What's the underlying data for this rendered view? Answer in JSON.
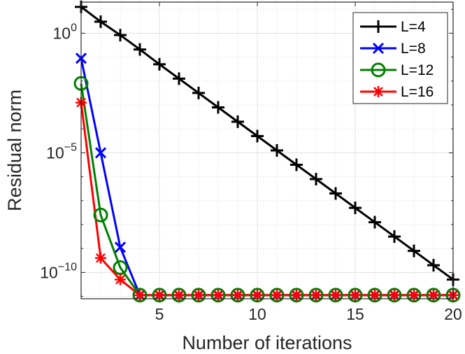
{
  "chart_data": {
    "type": "line",
    "title": "",
    "xlabel": "Number of iterations",
    "ylabel": "Residual norm",
    "xlim": [
      1,
      20
    ],
    "ylim_log10": [
      -11.1,
      1.3
    ],
    "yscale": "log",
    "grid": true,
    "legend_position": "top-right",
    "x_ticks": [
      {
        "value": 5,
        "label": "5"
      },
      {
        "value": 10,
        "label": "10"
      },
      {
        "value": 15,
        "label": "15"
      },
      {
        "value": 20,
        "label": "20"
      }
    ],
    "y_ticks": [
      {
        "exp": 0,
        "base": "10",
        "sup": "0"
      },
      {
        "exp": -5,
        "base": "10",
        "sup": "−5"
      },
      {
        "exp": -10,
        "base": "10",
        "sup": "−10"
      }
    ],
    "x": [
      1,
      2,
      3,
      4,
      5,
      6,
      7,
      8,
      9,
      10,
      11,
      12,
      13,
      14,
      15,
      16,
      17,
      18,
      19,
      20
    ],
    "series": [
      {
        "name": "L=4",
        "color": "#000000",
        "marker": "plus",
        "log10_values": [
          1.1,
          0.48,
          -0.08,
          -0.68,
          -1.3,
          -1.9,
          -2.5,
          -3.1,
          -3.7,
          -4.3,
          -4.9,
          -5.5,
          -6.1,
          -6.7,
          -7.3,
          -7.9,
          -8.5,
          -9.1,
          -9.7,
          -10.3
        ]
      },
      {
        "name": "L=8",
        "color": "#0000ff",
        "marker": "x",
        "log10_values": [
          -1.05,
          -5.0,
          -8.95,
          -10.95,
          -10.95,
          -10.95,
          -10.95,
          -10.95,
          -10.95,
          -10.95,
          -10.95,
          -10.95,
          -10.95,
          -10.95,
          -10.95,
          -10.95,
          -10.95,
          -10.95,
          -10.95,
          -10.95
        ]
      },
      {
        "name": "L=12",
        "color": "#008000",
        "marker": "circle",
        "log10_values": [
          -2.1,
          -7.6,
          -9.8,
          -10.95,
          -10.95,
          -10.95,
          -10.95,
          -10.95,
          -10.95,
          -10.95,
          -10.95,
          -10.95,
          -10.95,
          -10.95,
          -10.95,
          -10.95,
          -10.95,
          -10.95,
          -10.95,
          -10.95
        ]
      },
      {
        "name": "L=16",
        "color": "#ff0000",
        "marker": "asterisk",
        "log10_values": [
          -2.9,
          -9.4,
          -10.3,
          -10.95,
          -10.95,
          -10.95,
          -10.95,
          -10.95,
          -10.95,
          -10.95,
          -10.95,
          -10.95,
          -10.95,
          -10.95,
          -10.95,
          -10.95,
          -10.95,
          -10.95,
          -10.95,
          -10.95
        ]
      }
    ]
  }
}
